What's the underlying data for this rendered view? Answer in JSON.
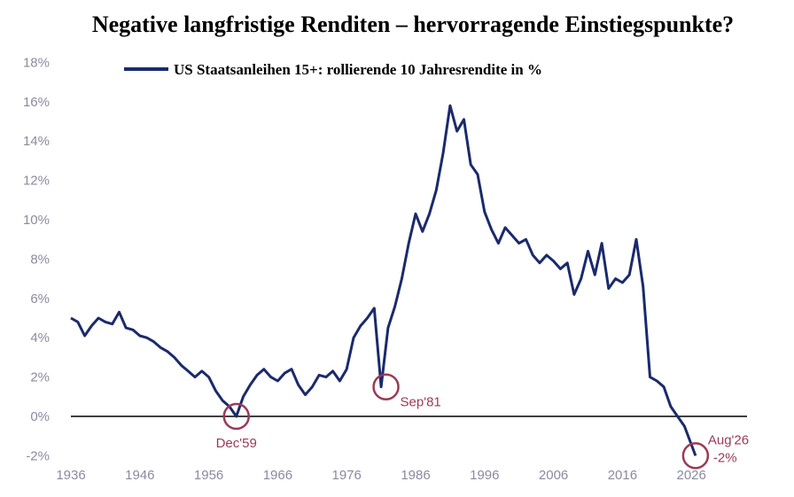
{
  "chart_data": {
    "type": "line",
    "title": "Negative langfristige Renditen – hervorragende Einstiegspunkte?",
    "legend": {
      "placement": "top-center",
      "label": "US Staatsanleihen 15+: rollierende 10 Jahresrendite in %"
    },
    "xlim": [
      1936,
      2030
    ],
    "ylim": [
      -2,
      18
    ],
    "x_ticks": [
      "1936",
      "1946",
      "1956",
      "1966",
      "1976",
      "1986",
      "1996",
      "2006",
      "2016",
      "2026"
    ],
    "y_ticks": [
      "18%",
      "16%",
      "14%",
      "12%",
      "10%",
      "8%",
      "6%",
      "4%",
      "2%",
      "0%",
      "-2%"
    ],
    "zero_line": true,
    "grid": false,
    "colors": {
      "line": "#1a2a6c",
      "annotation": "#9a3a55",
      "zero_line": "#000000"
    },
    "series": [
      {
        "name": "US Staatsanleihen 15+: rollierende 10 Jahresrendite in %",
        "x": [
          1936,
          1937,
          1938,
          1939,
          1940,
          1941,
          1942,
          1943,
          1944,
          1945,
          1946,
          1947,
          1948,
          1949,
          1950,
          1951,
          1952,
          1953,
          1954,
          1955,
          1956,
          1957,
          1958,
          1959,
          1960,
          1961,
          1962,
          1963,
          1964,
          1965,
          1966,
          1967,
          1968,
          1969,
          1970,
          1971,
          1972,
          1973,
          1974,
          1975,
          1976,
          1977,
          1978,
          1979,
          1980,
          1981,
          1982,
          1983,
          1984,
          1985,
          1986,
          1987,
          1988,
          1989,
          1990,
          1991,
          1992,
          1993,
          1994,
          1995,
          1996,
          1997,
          1998,
          1999,
          2000,
          2001,
          2002,
          2003,
          2004,
          2005,
          2006,
          2007,
          2008,
          2009,
          2010,
          2011,
          2012,
          2013,
          2014,
          2015,
          2016,
          2017,
          2018,
          2019,
          2020,
          2021,
          2022,
          2023,
          2024,
          2025,
          2026.6
        ],
        "values": [
          5.0,
          4.8,
          4.1,
          4.6,
          5.0,
          4.8,
          4.7,
          5.3,
          4.5,
          4.4,
          4.1,
          4.0,
          3.8,
          3.5,
          3.3,
          3.0,
          2.6,
          2.3,
          2.0,
          2.3,
          2.0,
          1.3,
          0.8,
          0.5,
          0.0,
          1.0,
          1.6,
          2.1,
          2.4,
          2.0,
          1.8,
          2.2,
          2.4,
          1.6,
          1.1,
          1.5,
          2.1,
          2.0,
          2.3,
          1.8,
          2.4,
          4.0,
          4.6,
          5.0,
          5.5,
          1.5,
          4.5,
          5.6,
          7.0,
          8.8,
          10.3,
          9.4,
          10.3,
          11.5,
          13.4,
          15.8,
          14.5,
          15.1,
          12.8,
          12.3,
          10.4,
          9.5,
          8.8,
          9.6,
          9.2,
          8.8,
          9.0,
          8.2,
          7.8,
          8.2,
          7.9,
          7.5,
          7.8,
          6.2,
          7.0,
          8.4,
          7.2,
          8.8,
          6.5,
          7.0,
          6.8,
          7.2,
          9.0,
          6.6,
          2.0,
          1.8,
          1.5,
          0.5,
          0.0,
          -0.5,
          -2.0
        ]
      }
    ],
    "annotations": [
      {
        "label": "Dec'59",
        "x": 1960,
        "y": 0.0
      },
      {
        "label": "Sep'81",
        "x": 1981.7,
        "y": 1.5
      },
      {
        "label": "Aug'26",
        "label2": "-2%",
        "x": 2026.6,
        "y": -2.0
      }
    ]
  }
}
